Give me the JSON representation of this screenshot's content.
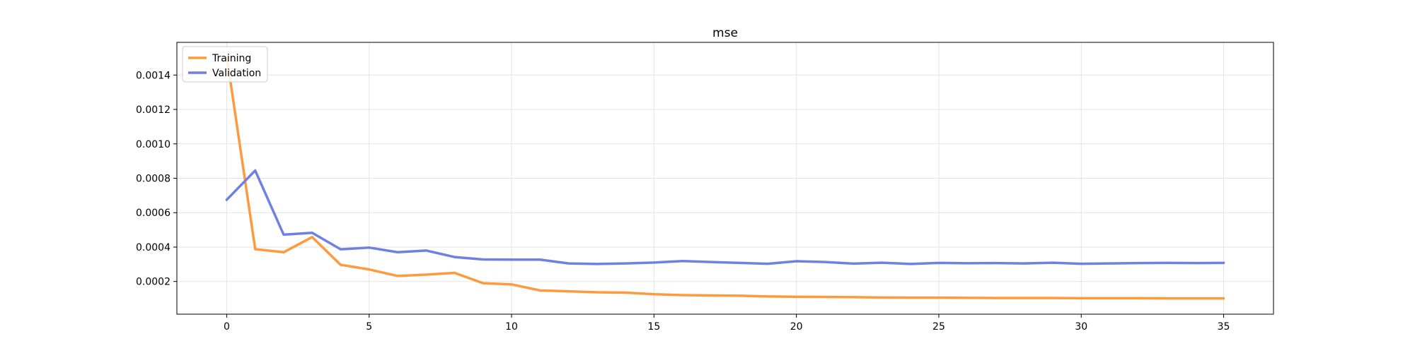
{
  "chart_data": {
    "type": "line",
    "title": "mse",
    "xlabel": "",
    "ylabel": "",
    "xlim": [
      -1.75,
      36.75
    ],
    "ylim": [
      1e-05,
      0.00159
    ],
    "x_ticks": [
      0,
      5,
      10,
      15,
      20,
      25,
      30,
      35
    ],
    "y_ticks": [
      0.0002,
      0.0004,
      0.0006,
      0.0008,
      0.001,
      0.0012,
      0.0014
    ],
    "grid": true,
    "legend_position": "top-left",
    "x": [
      0,
      1,
      2,
      3,
      4,
      5,
      6,
      7,
      8,
      9,
      10,
      11,
      12,
      13,
      14,
      15,
      16,
      17,
      18,
      19,
      20,
      21,
      22,
      23,
      24,
      25,
      26,
      27,
      28,
      29,
      30,
      31,
      32,
      33,
      34,
      35
    ],
    "series": [
      {
        "name": "Training",
        "color": "#ff9a3c",
        "values": [
          0.00151,
          0.000388,
          0.00037,
          0.000458,
          0.000297,
          0.00027,
          0.000232,
          0.00024,
          0.00025,
          0.00019,
          0.000183,
          0.000148,
          0.000143,
          0.000137,
          0.000135,
          0.000126,
          0.000121,
          0.000119,
          0.000117,
          0.000113,
          0.000111,
          0.00011,
          0.000109,
          0.000107,
          0.000106,
          0.000106,
          0.000105,
          0.000104,
          0.000104,
          0.000104,
          0.000103,
          0.000103,
          0.000103,
          0.000102,
          0.000102,
          0.000102
        ]
      },
      {
        "name": "Validation",
        "color": "#6f7fe2",
        "values": [
          0.000675,
          0.000845,
          0.000472,
          0.000483,
          0.000387,
          0.000397,
          0.00037,
          0.00038,
          0.000342,
          0.000328,
          0.000327,
          0.000327,
          0.000305,
          0.000302,
          0.000305,
          0.00031,
          0.000319,
          0.000313,
          0.000308,
          0.000303,
          0.000318,
          0.000313,
          0.000304,
          0.000309,
          0.000302,
          0.000308,
          0.000306,
          0.000307,
          0.000305,
          0.000309,
          0.000303,
          0.000305,
          0.000307,
          0.000308,
          0.000307,
          0.000308
        ]
      }
    ]
  }
}
